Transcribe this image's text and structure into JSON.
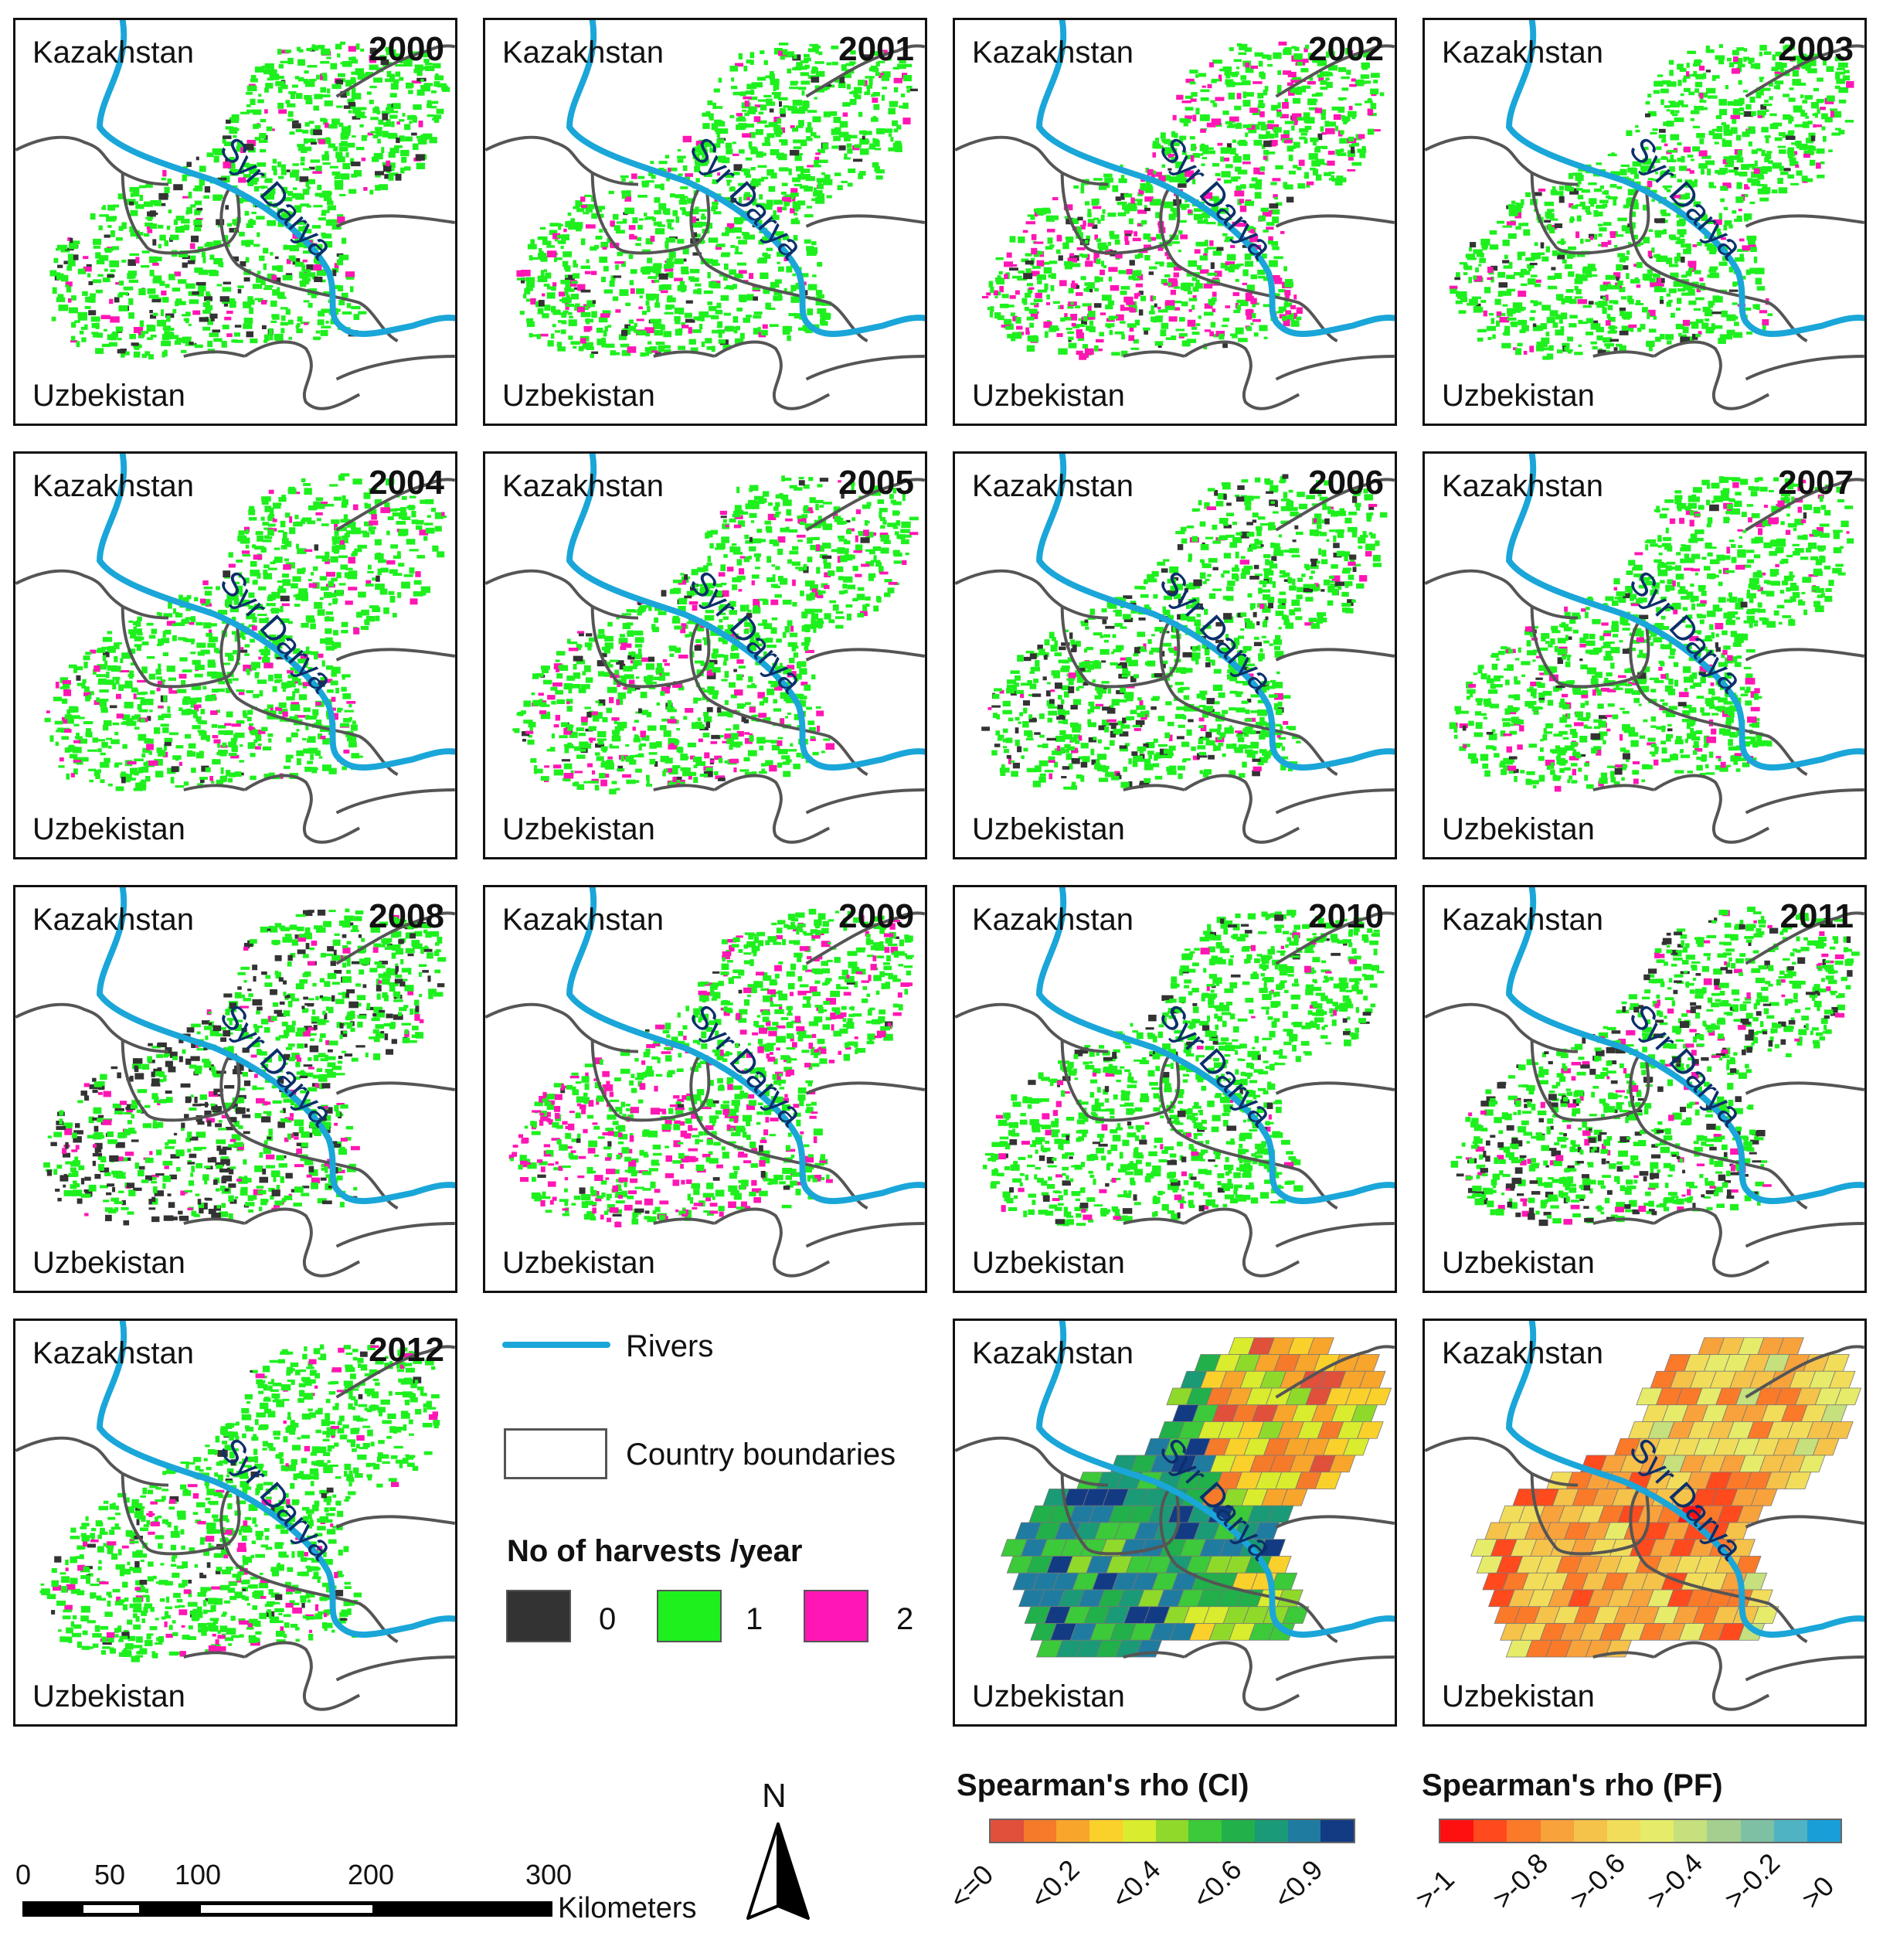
{
  "labels": {
    "north_country": "Kazakhstan",
    "south_country": "Uzbekistan",
    "river": "Syr Darya"
  },
  "years": [
    "2000",
    "2001",
    "2002",
    "2003",
    "2004",
    "2005",
    "2006",
    "2007",
    "2008",
    "2009",
    "2010",
    "2011",
    "2012"
  ],
  "year_pink_level": [
    0.25,
    0.35,
    0.85,
    0.3,
    0.45,
    0.5,
    0.12,
    0.4,
    0.3,
    1.0,
    0.15,
    0.3,
    0.3
  ],
  "year_dark_level": [
    0.3,
    0.1,
    0.1,
    0.15,
    0.05,
    0.15,
    0.45,
    0.1,
    0.9,
    0.05,
    0.2,
    0.6,
    0.1
  ],
  "legend": {
    "rivers": "Rivers",
    "boundaries": "Country boundaries",
    "harvest_title": "No of harvests /year",
    "harvest_classes": [
      "0",
      "1",
      "2"
    ]
  },
  "correlation_maps": {
    "ci_title": "Spearman's rho (CI)",
    "pf_title": "Spearman's rho (PF)",
    "ci_ticks": [
      "<=0",
      "<0.2",
      "<0.4",
      "<0.6",
      "<0.9"
    ],
    "pf_ticks": [
      ">-1",
      ">-0.8",
      ">-0.6",
      ">-0.4",
      ">-0.2",
      ">0"
    ]
  },
  "scale_bar": {
    "ticks": [
      "0",
      "50",
      "100",
      "200",
      "300"
    ],
    "unit": "Kilometers",
    "north": "N"
  },
  "colors": {
    "river": "#1aa6d8",
    "boundary": "#555555",
    "class_0": "#333333",
    "class_1": "#1ef01e",
    "class_2": "#ff16b4",
    "ci_ramp": [
      "#e0503a",
      "#f57a2a",
      "#f7a52b",
      "#fad02b",
      "#d9ec2d",
      "#8fd92b",
      "#3cc93a",
      "#21b04a",
      "#1a9a76",
      "#1f7ca0",
      "#123b84"
    ],
    "pf_ramp": [
      "#ff1010",
      "#ff4a1e",
      "#fa7a2a",
      "#f8a23c",
      "#f5c24a",
      "#f2dd5a",
      "#e6ec6a",
      "#c5e07c",
      "#a4cf8e",
      "#7ec0a4",
      "#4fb3c4",
      "#1a9ed8"
    ]
  }
}
